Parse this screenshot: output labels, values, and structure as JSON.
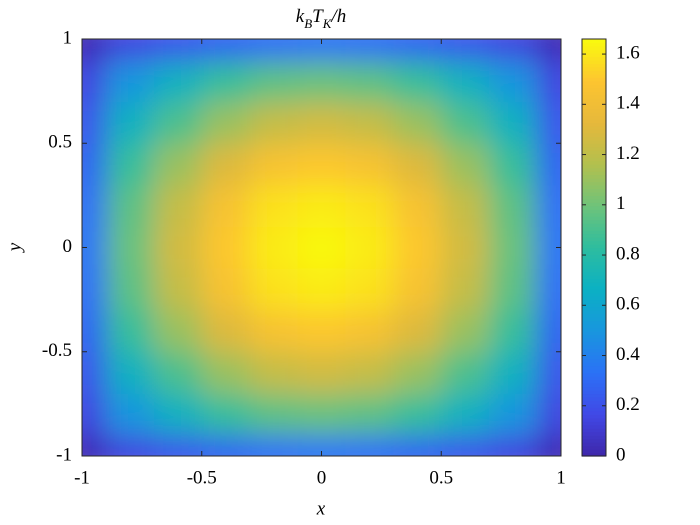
{
  "chart_data": {
    "type": "heatmap",
    "title": [
      "k",
      "B",
      "T",
      "K",
      "/h"
    ],
    "title_subscript": [
      false,
      true,
      false,
      true,
      false
    ],
    "xlabel": "x",
    "ylabel": "y",
    "x": [
      -1,
      -0.8,
      -0.6,
      -0.4,
      -0.2,
      0,
      0.2,
      0.4,
      0.6,
      0.8,
      1
    ],
    "y": [
      -1,
      -0.8,
      -0.6,
      -0.4,
      -0.2,
      0,
      0.2,
      0.4,
      0.6,
      0.8,
      1
    ],
    "z": [
      [
        0.03,
        0.15,
        0.22,
        0.28,
        0.32,
        0.34,
        0.32,
        0.28,
        0.22,
        0.15,
        0.03
      ],
      [
        0.15,
        0.5,
        0.68,
        0.85,
        0.95,
        0.98,
        0.95,
        0.85,
        0.68,
        0.5,
        0.15
      ],
      [
        0.22,
        0.68,
        0.91,
        1.1,
        1.22,
        1.26,
        1.22,
        1.1,
        0.91,
        0.68,
        0.22
      ],
      [
        0.28,
        0.85,
        1.1,
        1.3,
        1.45,
        1.5,
        1.45,
        1.3,
        1.1,
        0.85,
        0.28
      ],
      [
        0.32,
        0.95,
        1.22,
        1.45,
        1.58,
        1.61,
        1.58,
        1.45,
        1.22,
        0.95,
        0.32
      ],
      [
        0.34,
        0.98,
        1.26,
        1.5,
        1.61,
        1.65,
        1.61,
        1.5,
        1.26,
        0.98,
        0.34
      ],
      [
        0.32,
        0.95,
        1.22,
        1.45,
        1.58,
        1.61,
        1.58,
        1.45,
        1.22,
        0.95,
        0.32
      ],
      [
        0.28,
        0.85,
        1.1,
        1.3,
        1.45,
        1.5,
        1.45,
        1.3,
        1.1,
        0.85,
        0.28
      ],
      [
        0.22,
        0.68,
        0.91,
        1.1,
        1.22,
        1.26,
        1.22,
        1.1,
        0.91,
        0.68,
        0.22
      ],
      [
        0.15,
        0.5,
        0.68,
        0.85,
        0.95,
        0.98,
        0.95,
        0.85,
        0.68,
        0.5,
        0.15
      ],
      [
        0.03,
        0.15,
        0.22,
        0.28,
        0.32,
        0.34,
        0.32,
        0.28,
        0.22,
        0.15,
        0.03
      ]
    ],
    "xlim": [
      -1,
      1
    ],
    "ylim": [
      -1,
      1
    ],
    "xticks": [
      -1,
      -0.5,
      0,
      0.5,
      1
    ],
    "yticks": [
      -1,
      -0.5,
      0,
      0.5,
      1
    ],
    "clim": [
      0,
      1.66
    ],
    "cticks": [
      0,
      0.2,
      0.4,
      0.6,
      0.8,
      1,
      1.2,
      1.4,
      1.6
    ],
    "colormap": [
      "#3e26a8",
      "#4148e6",
      "#2b71f6",
      "#1996de",
      "#0bb0c4",
      "#2dbd9f",
      "#6ec37a",
      "#b2c04e",
      "#e6b83b",
      "#fdc530",
      "#f9fb0e"
    ]
  }
}
